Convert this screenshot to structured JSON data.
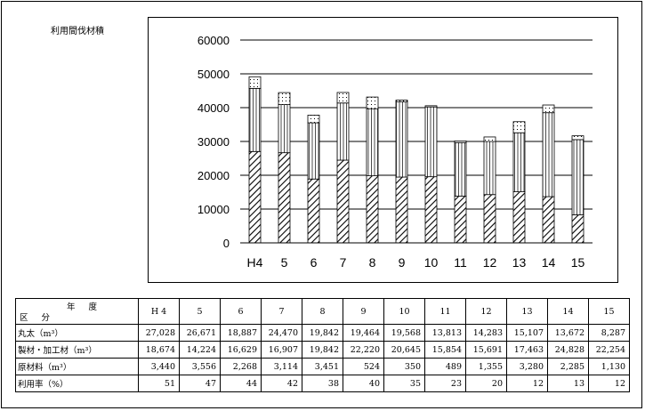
{
  "chart_title": "利用間伐材積",
  "chart_data": {
    "type": "bar",
    "stacked": true,
    "categories": [
      "H4",
      "5",
      "6",
      "7",
      "8",
      "9",
      "10",
      "11",
      "12",
      "13",
      "14",
      "15"
    ],
    "series": [
      {
        "name": "丸太",
        "pattern": "diagonal-hatch",
        "values": [
          27028,
          26671,
          18887,
          24470,
          19842,
          19464,
          19568,
          13813,
          14283,
          15107,
          13672,
          8287
        ]
      },
      {
        "name": "製材・加工材",
        "pattern": "vertical-lines",
        "values": [
          18674,
          14224,
          16629,
          16907,
          19842,
          22220,
          20645,
          15854,
          15691,
          17463,
          24828,
          22254
        ]
      },
      {
        "name": "原材料",
        "pattern": "dots",
        "values": [
          3440,
          3556,
          2268,
          3114,
          3451,
          524,
          350,
          489,
          1355,
          3280,
          2285,
          1130
        ]
      }
    ],
    "ylim": [
      0,
      60000
    ],
    "yticks": [
      "0",
      "10000",
      "20000",
      "30000",
      "40000",
      "50000",
      "60000"
    ],
    "grid": true
  },
  "table": {
    "header_top": "年 度",
    "header_bottom": "区 分",
    "years": [
      "H 4",
      "5",
      "6",
      "7",
      "8",
      "9",
      "10",
      "11",
      "12",
      "13",
      "14",
      "15"
    ],
    "rows": [
      {
        "label": "丸太（m³）",
        "values": [
          "27,028",
          "26,671",
          "18,887",
          "24,470",
          "19,842",
          "19,464",
          "19,568",
          "13,813",
          "14,283",
          "15,107",
          "13,672",
          "8,287"
        ]
      },
      {
        "label": "製材・加工材（m³）",
        "values": [
          "18,674",
          "14,224",
          "16,629",
          "16,907",
          "19,842",
          "22,220",
          "20,645",
          "15,854",
          "15,691",
          "17,463",
          "24,828",
          "22,254"
        ]
      },
      {
        "label": "原材料（m³）",
        "values": [
          "3,440",
          "3,556",
          "2,268",
          "3,114",
          "3,451",
          "524",
          "350",
          "489",
          "1,355",
          "3,280",
          "2,285",
          "1,130"
        ]
      },
      {
        "label": "利用率（%）",
        "values": [
          "51",
          "47",
          "44",
          "42",
          "38",
          "40",
          "35",
          "23",
          "20",
          "12",
          "13",
          "12"
        ]
      }
    ]
  }
}
